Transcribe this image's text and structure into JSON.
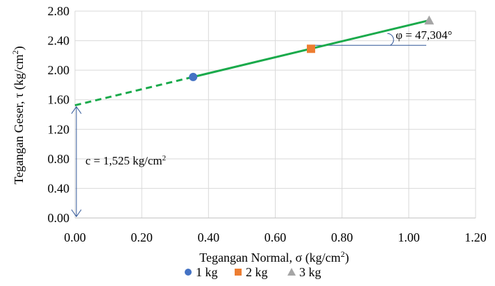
{
  "chart_data": {
    "type": "scatter",
    "xlabel": "Tegangan Normal, σ (kg/cm",
    "xlabel_sup": "2",
    "xlabel_end": ")",
    "ylabel": "Tegangan Geser, τ (kg/cm",
    "ylabel_sup": "2",
    "ylabel_end": ")",
    "xlim": [
      0,
      1.2
    ],
    "ylim": [
      0,
      2.8
    ],
    "x_ticks": [
      "0.00",
      "0.20",
      "0.40",
      "0.60",
      "0.80",
      "1.00",
      "1.20"
    ],
    "y_ticks": [
      "0.00",
      "0.40",
      "0.80",
      "1.20",
      "1.60",
      "2.00",
      "2.40",
      "2.80"
    ],
    "x_tick_values": [
      0,
      0.2,
      0.4,
      0.6,
      0.8,
      1.0,
      1.2
    ],
    "y_tick_values": [
      0,
      0.4,
      0.8,
      1.2,
      1.6,
      2.0,
      2.4,
      2.8
    ],
    "grid": true,
    "legend_position": "bottom",
    "series": [
      {
        "name": "1 kg",
        "marker": "circle",
        "color": "#4472C4",
        "x": 0.354,
        "y": 1.908
      },
      {
        "name": "2 kg",
        "marker": "square",
        "color": "#ED7D31",
        "x": 0.707,
        "y": 2.29
      },
      {
        "name": "3 kg",
        "marker": "triangle",
        "color": "#A5A5A5",
        "x": 1.061,
        "y": 2.675
      }
    ],
    "fit_line": {
      "color": "#1AAA4B",
      "intercept": 1.525,
      "dashed_from_x": 0,
      "dashed_to_x": 0.354,
      "solid_from_x": 0.354,
      "solid_to_x": 1.061
    },
    "annotations": {
      "cohesion_label": "c = 1,525 kg/cm",
      "cohesion_sup": "2",
      "angle_label": "φ = 47,304°",
      "annotation_color": "#2F5597"
    }
  }
}
